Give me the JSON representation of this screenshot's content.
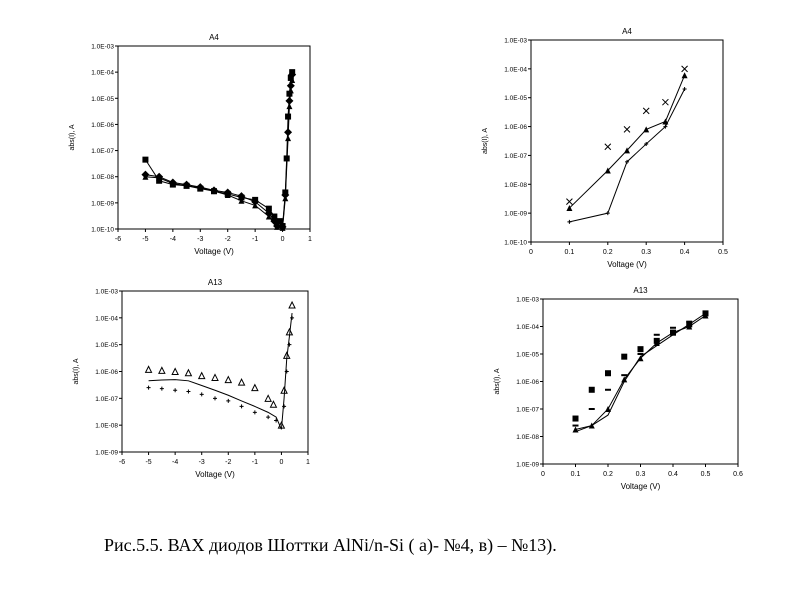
{
  "chart_data": [
    {
      "id": "a4_full",
      "type": "scatter",
      "title": "A4",
      "xlabel": "Voltage (V)",
      "ylabel": "abs(I), A",
      "xlim": [
        -6,
        1
      ],
      "ylim_log10": [
        -10,
        -3
      ],
      "log_y": true,
      "x_ticks": [
        "-6",
        "-5",
        "-4",
        "-3",
        "-2",
        "-1",
        "0",
        "1"
      ],
      "y_ticks": [
        "1.0E-10",
        "1.0E-09",
        "1.0E-08",
        "1.0E-07",
        "1.0E-06",
        "1.0E-05",
        "1.0E-04",
        "1.0E-03"
      ],
      "series": [
        {
          "marker": "square",
          "line": true,
          "points": [
            [
              -5,
              4.5e-08
            ],
            [
              -4.5,
              7e-09
            ],
            [
              -4,
              5e-09
            ],
            [
              -3.5,
              4.5e-09
            ],
            [
              -3,
              3.5e-09
            ],
            [
              -2.5,
              2.8e-09
            ],
            [
              -2,
              2.2e-09
            ],
            [
              -1.5,
              1.6e-09
            ],
            [
              -1,
              1.3e-09
            ],
            [
              -0.5,
              6e-10
            ],
            [
              -0.3,
              3e-10
            ],
            [
              -0.1,
              2e-10
            ],
            [
              0,
              1.3e-10
            ],
            [
              0.1,
              2.5e-09
            ],
            [
              0.15,
              5e-08
            ],
            [
              0.2,
              2e-06
            ],
            [
              0.25,
              1.5e-05
            ],
            [
              0.3,
              6e-05
            ],
            [
              0.35,
              0.0001
            ]
          ]
        },
        {
          "marker": "diamond",
          "line": true,
          "points": [
            [
              -5,
              1.2e-08
            ],
            [
              -4.5,
              1e-08
            ],
            [
              -4,
              6e-09
            ],
            [
              -3.5,
              5e-09
            ],
            [
              -3,
              4e-09
            ],
            [
              -2.5,
              3e-09
            ],
            [
              -2,
              2.5e-09
            ],
            [
              -1.5,
              1.8e-09
            ],
            [
              -1,
              1.1e-09
            ],
            [
              -0.5,
              4e-10
            ],
            [
              -0.3,
              2e-10
            ],
            [
              -0.2,
              1.3e-10
            ],
            [
              0,
              1.2e-10
            ],
            [
              0.1,
              2e-09
            ],
            [
              0.2,
              5e-07
            ],
            [
              0.25,
              8e-06
            ],
            [
              0.3,
              3e-05
            ],
            [
              0.35,
              8e-05
            ]
          ]
        },
        {
          "marker": "triangle",
          "line": true,
          "points": [
            [
              -5,
              1e-08
            ],
            [
              -4.5,
              9e-09
            ],
            [
              -4,
              5.5e-09
            ],
            [
              -3.5,
              4.5e-09
            ],
            [
              -3,
              3.8e-09
            ],
            [
              -2.5,
              2.8e-09
            ],
            [
              -2,
              2e-09
            ],
            [
              -1.5,
              1.2e-09
            ],
            [
              -1,
              8e-10
            ],
            [
              -0.5,
              3e-10
            ],
            [
              -0.2,
              1.2e-10
            ],
            [
              0,
              1.1e-10
            ],
            [
              0.1,
              1.5e-09
            ],
            [
              0.2,
              3e-07
            ],
            [
              0.25,
              5e-06
            ],
            [
              0.3,
              2e-05
            ],
            [
              0.35,
              5e-05
            ]
          ]
        }
      ]
    },
    {
      "id": "a4_fwd",
      "type": "scatter",
      "title": "A4",
      "xlabel": "Voltage (V)",
      "ylabel": "abs(I), A",
      "xlim": [
        0,
        0.5
      ],
      "ylim_log10": [
        -10,
        -3
      ],
      "log_y": true,
      "x_ticks": [
        "0",
        "0.1",
        "0.2",
        "0.3",
        "0.4",
        "0.5"
      ],
      "y_ticks": [
        "1.0E-10",
        "1.0E-09",
        "1.0E-08",
        "1.0E-07",
        "1.0E-06",
        "1.0E-05",
        "1.0E-04",
        "1.0E-03"
      ],
      "series": [
        {
          "marker": "x",
          "line": false,
          "points": [
            [
              0.1,
              2.5e-09
            ],
            [
              0.2,
              2e-07
            ],
            [
              0.25,
              8e-07
            ],
            [
              0.3,
              3.5e-06
            ],
            [
              0.35,
              7e-06
            ],
            [
              0.4,
              0.0001
            ]
          ]
        },
        {
          "marker": "triangle",
          "line": true,
          "points": [
            [
              0.1,
              1.5e-09
            ],
            [
              0.2,
              3e-08
            ],
            [
              0.25,
              1.5e-07
            ],
            [
              0.3,
              8e-07
            ],
            [
              0.35,
              1.5e-06
            ],
            [
              0.4,
              6e-05
            ]
          ]
        },
        {
          "marker": "plus",
          "line": true,
          "points": [
            [
              0.1,
              5e-10
            ],
            [
              0.2,
              1e-09
            ],
            [
              0.25,
              6e-08
            ],
            [
              0.3,
              2.5e-07
            ],
            [
              0.35,
              1e-06
            ],
            [
              0.4,
              2e-05
            ]
          ]
        }
      ]
    },
    {
      "id": "a13_full",
      "type": "scatter",
      "title": "A13",
      "xlabel": "Voltage (V)",
      "ylabel": "abs(I), A",
      "xlim": [
        -6,
        1
      ],
      "ylim_log10": [
        -9,
        -3
      ],
      "log_y": true,
      "x_ticks": [
        "-6",
        "-5",
        "-4",
        "-3",
        "-2",
        "-1",
        "0",
        "1"
      ],
      "y_ticks": [
        "1.0E-09",
        "1.0E-08",
        "1.0E-07",
        "1.0E-06",
        "1.0E-05",
        "1.0E-04",
        "1.0E-03"
      ],
      "series": [
        {
          "marker": "triangle-open",
          "line": false,
          "points": [
            [
              -5,
              1.2e-06
            ],
            [
              -4.5,
              1.1e-06
            ],
            [
              -4,
              1e-06
            ],
            [
              -3.5,
              9e-07
            ],
            [
              -3,
              7e-07
            ],
            [
              -2.5,
              6e-07
            ],
            [
              -2,
              5e-07
            ],
            [
              -1.5,
              4e-07
            ],
            [
              -1,
              2.5e-07
            ],
            [
              -0.5,
              1e-07
            ],
            [
              -0.3,
              6e-08
            ],
            [
              0,
              1e-08
            ],
            [
              0.1,
              2e-07
            ],
            [
              0.2,
              4e-06
            ],
            [
              0.3,
              3e-05
            ],
            [
              0.4,
              0.0003
            ]
          ]
        },
        {
          "marker": "none",
          "line": true,
          "points": [
            [
              -5,
              4.5e-07
            ],
            [
              -4.5,
              4.8e-07
            ],
            [
              -4,
              5e-07
            ],
            [
              -3.5,
              4.5e-07
            ],
            [
              -3,
              3e-07
            ],
            [
              -2.5,
              2e-07
            ],
            [
              -2,
              1.3e-07
            ],
            [
              -1.5,
              8e-08
            ],
            [
              -1,
              5e-08
            ],
            [
              -0.5,
              3e-08
            ],
            [
              -0.2,
              2e-08
            ],
            [
              0,
              7e-09
            ],
            [
              0.1,
              1e-07
            ],
            [
              0.2,
              3e-06
            ],
            [
              0.3,
              2e-05
            ],
            [
              0.4,
              0.00015
            ]
          ]
        },
        {
          "marker": "plus",
          "line": false,
          "points": [
            [
              -5,
              2.5e-07
            ],
            [
              -4.5,
              2.3e-07
            ],
            [
              -4,
              2e-07
            ],
            [
              -3.5,
              1.8e-07
            ],
            [
              -3,
              1.4e-07
            ],
            [
              -2.5,
              1e-07
            ],
            [
              -2,
              8e-08
            ],
            [
              -1.5,
              5e-08
            ],
            [
              -1,
              3e-08
            ],
            [
              -0.5,
              2e-08
            ],
            [
              -0.2,
              1.5e-08
            ],
            [
              0.1,
              5e-08
            ],
            [
              0.2,
              1e-06
            ],
            [
              0.3,
              1e-05
            ],
            [
              0.4,
              0.0001
            ]
          ]
        }
      ]
    },
    {
      "id": "a13_fwd",
      "type": "scatter",
      "title": "A13",
      "xlabel": "Voltage (V)",
      "ylabel": "abs(I), A",
      "xlim": [
        0,
        0.6
      ],
      "ylim_log10": [
        -9,
        -3
      ],
      "log_y": true,
      "x_ticks": [
        "0",
        "0.1",
        "0.2",
        "0.3",
        "0.4",
        "0.5",
        "0.6"
      ],
      "y_ticks": [
        "1.0E-09",
        "1.0E-08",
        "1.0E-07",
        "1.0E-06",
        "1.0E-05",
        "1.0E-04",
        "1.0E-03"
      ],
      "series": [
        {
          "marker": "square",
          "line": false,
          "points": [
            [
              0.1,
              4.5e-08
            ],
            [
              0.15,
              5e-07
            ],
            [
              0.2,
              2e-06
            ],
            [
              0.25,
              8e-06
            ],
            [
              0.3,
              1.5e-05
            ],
            [
              0.35,
              3e-05
            ],
            [
              0.4,
              6e-05
            ],
            [
              0.45,
              0.00012
            ],
            [
              0.5,
              0.0003
            ]
          ]
        },
        {
          "marker": "dash",
          "line": false,
          "points": [
            [
              0.1,
              2.5e-08
            ],
            [
              0.15,
              1e-07
            ],
            [
              0.2,
              5e-07
            ],
            [
              0.25,
              1.7e-06
            ],
            [
              0.3,
              1e-05
            ],
            [
              0.35,
              5e-05
            ],
            [
              0.4,
              9e-05
            ],
            [
              0.45,
              0.00015
            ]
          ]
        },
        {
          "marker": "triangle",
          "line": true,
          "points": [
            [
              0.1,
              1.8e-08
            ],
            [
              0.15,
              2.5e-08
            ],
            [
              0.2,
              1e-07
            ],
            [
              0.25,
              1.2e-06
            ],
            [
              0.3,
              7e-06
            ],
            [
              0.35,
              2.5e-05
            ],
            [
              0.4,
              6e-05
            ],
            [
              0.45,
              0.0001
            ],
            [
              0.5,
              0.00025
            ]
          ]
        },
        {
          "marker": "none",
          "line": true,
          "points": [
            [
              0.1,
              1.5e-08
            ],
            [
              0.15,
              2.5e-08
            ],
            [
              0.2,
              6e-08
            ],
            [
              0.25,
              1e-06
            ],
            [
              0.3,
              8e-06
            ],
            [
              0.35,
              2e-05
            ],
            [
              0.4,
              5e-05
            ],
            [
              0.45,
              0.00012
            ],
            [
              0.5,
              0.0003
            ]
          ]
        }
      ]
    }
  ],
  "caption": "Рис.5.5. ВАХ диодов Шоттки AlNi/n-Si (  а)- №4, в) – №13)."
}
